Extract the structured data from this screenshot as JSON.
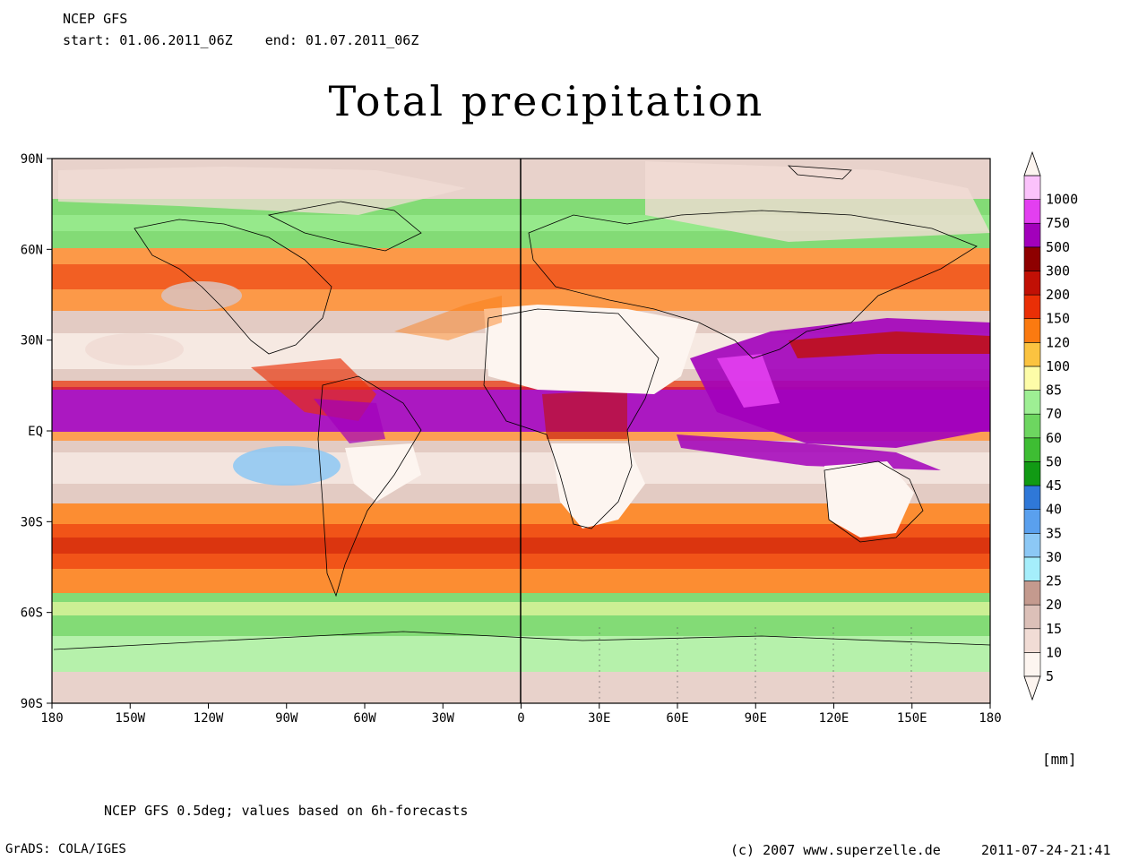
{
  "header": {
    "model": "NCEP GFS",
    "period": "start: 01.06.2011_06Z    end: 01.07.2011_06Z"
  },
  "title": "Total precipitation",
  "axes": {
    "lat_labels": [
      "90N",
      "60N",
      "30N",
      "EQ",
      "30S",
      "60S",
      "90S"
    ],
    "lon_labels": [
      "180",
      "150W",
      "120W",
      "90W",
      "60W",
      "30W",
      "0",
      "30E",
      "60E",
      "90E",
      "120E",
      "150E",
      "180"
    ]
  },
  "colorbar": {
    "unit": "[mm]",
    "levels": [
      "5",
      "10",
      "15",
      "20",
      "25",
      "30",
      "35",
      "40",
      "45",
      "50",
      "60",
      "70",
      "85",
      "100",
      "120",
      "150",
      "200",
      "300",
      "500",
      "750",
      "1000"
    ],
    "colors": [
      "#fdf5f0",
      "#f1dcd5",
      "#dcc0b8",
      "#c49a8e",
      "#a5eefb",
      "#8cc8f5",
      "#5aa0ee",
      "#2f78d8",
      "#119a14",
      "#3ebd33",
      "#6dd660",
      "#9eef94",
      "#fdfca8",
      "#fbc340",
      "#fb7a10",
      "#ea2f06",
      "#c11005",
      "#8e0000",
      "#a200bb",
      "#e33ff0",
      "#fbc2fb"
    ]
  },
  "footer": {
    "note": "NCEP GFS 0.5deg; values based on 6h-forecasts",
    "grads": "GrADS: COLA/IGES",
    "copyright": "(c) 2007 www.superzelle.de",
    "timestamp": "2011-07-24-21:41"
  }
}
